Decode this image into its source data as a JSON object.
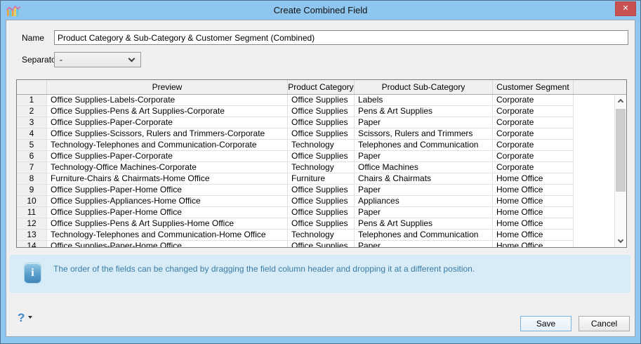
{
  "window": {
    "title": "Create Combined Field",
    "close_label": "✕"
  },
  "form": {
    "name_label": "Name",
    "name_value": "Product Category & Sub-Category & Customer Segment (Combined)",
    "separator_label": "Separator",
    "separator_value": "-"
  },
  "table": {
    "columns": [
      "",
      "Preview",
      "Product Category",
      "Product Sub-Category",
      "Customer Segment"
    ],
    "rows": [
      {
        "num": "1",
        "preview": "Office Supplies-Labels-Corporate",
        "category": "Office Supplies",
        "subcategory": "Labels",
        "segment": "Corporate"
      },
      {
        "num": "2",
        "preview": "Office Supplies-Pens & Art Supplies-Corporate",
        "category": "Office Supplies",
        "subcategory": "Pens & Art Supplies",
        "segment": "Corporate"
      },
      {
        "num": "3",
        "preview": "Office Supplies-Paper-Corporate",
        "category": "Office Supplies",
        "subcategory": "Paper",
        "segment": "Corporate"
      },
      {
        "num": "4",
        "preview": "Office Supplies-Scissors, Rulers and Trimmers-Corporate",
        "category": "Office Supplies",
        "subcategory": "Scissors, Rulers and Trimmers",
        "segment": "Corporate"
      },
      {
        "num": "5",
        "preview": "Technology-Telephones and Communication-Corporate",
        "category": "Technology",
        "subcategory": "Telephones and Communication",
        "segment": "Corporate"
      },
      {
        "num": "6",
        "preview": "Office Supplies-Paper-Corporate",
        "category": "Office Supplies",
        "subcategory": "Paper",
        "segment": "Corporate"
      },
      {
        "num": "7",
        "preview": "Technology-Office Machines-Corporate",
        "category": "Technology",
        "subcategory": "Office Machines",
        "segment": "Corporate"
      },
      {
        "num": "8",
        "preview": "Furniture-Chairs & Chairmats-Home Office",
        "category": "Furniture",
        "subcategory": "Chairs & Chairmats",
        "segment": "Home Office"
      },
      {
        "num": "9",
        "preview": "Office Supplies-Paper-Home Office",
        "category": "Office Supplies",
        "subcategory": "Paper",
        "segment": "Home Office"
      },
      {
        "num": "10",
        "preview": "Office Supplies-Appliances-Home Office",
        "category": "Office Supplies",
        "subcategory": "Appliances",
        "segment": "Home Office"
      },
      {
        "num": "11",
        "preview": "Office Supplies-Paper-Home Office",
        "category": "Office Supplies",
        "subcategory": "Paper",
        "segment": "Home Office"
      },
      {
        "num": "12",
        "preview": "Office Supplies-Pens & Art Supplies-Home Office",
        "category": "Office Supplies",
        "subcategory": "Pens & Art Supplies",
        "segment": "Home Office"
      },
      {
        "num": "13",
        "preview": "Technology-Telephones and Communication-Home Office",
        "category": "Technology",
        "subcategory": "Telephones and Communication",
        "segment": "Home Office"
      },
      {
        "num": "14",
        "preview": "Office Supplies-Paper-Home Office",
        "category": "Office Supplies",
        "subcategory": "Paper",
        "segment": "Home Office"
      }
    ]
  },
  "info": {
    "text": "The order of the fields can be changed by dragging the field column header and dropping it at a different position."
  },
  "footer": {
    "help_label": "?",
    "save_label": "Save",
    "cancel_label": "Cancel"
  },
  "colors": {
    "titlebar_blue": "#8ec6f0",
    "close_red": "#c75050",
    "content_bg": "#f0f0f0",
    "info_bg": "#d8ecf7",
    "info_text": "#3a7ca5",
    "save_border": "#7ab2e2"
  }
}
